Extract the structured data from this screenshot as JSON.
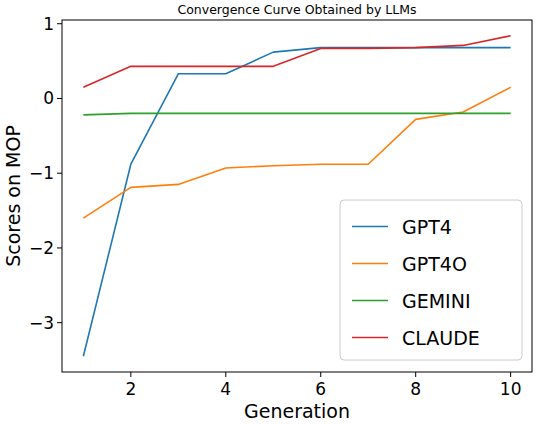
{
  "chart_data": {
    "type": "line",
    "title": "Convergence Curve Obtained by LLMs",
    "x_label": "Generation",
    "y_label": "Scores on MOP",
    "x": [
      1,
      2,
      3,
      4,
      5,
      6,
      7,
      8,
      9,
      10
    ],
    "series": [
      {
        "name": "GPT4",
        "color": "#1f77b4",
        "values": [
          -3.45,
          -0.88,
          0.33,
          0.33,
          0.62,
          0.68,
          0.68,
          0.68,
          0.68,
          0.68
        ]
      },
      {
        "name": "GPT4O",
        "color": "#ff7f0e",
        "values": [
          -1.6,
          -1.19,
          -1.15,
          -0.93,
          -0.9,
          -0.88,
          -0.88,
          -0.28,
          -0.18,
          0.15
        ]
      },
      {
        "name": "GEMINI",
        "color": "#2ca02c",
        "values": [
          -0.22,
          -0.2,
          -0.2,
          -0.2,
          -0.2,
          -0.2,
          -0.2,
          -0.2,
          -0.2,
          -0.2
        ]
      },
      {
        "name": "CLAUDE",
        "color": "#d62728",
        "values": [
          0.15,
          0.43,
          0.43,
          0.43,
          0.43,
          0.67,
          0.67,
          0.68,
          0.71,
          0.84
        ]
      }
    ],
    "xlim": [
      0.55,
      10.45
    ],
    "ylim": [
      -3.66,
      1.05
    ],
    "xticks": [
      2,
      4,
      6,
      8,
      10
    ],
    "yticks": [
      -3,
      -2,
      -1,
      0,
      1
    ],
    "legend": "lower right",
    "grid": false
  }
}
